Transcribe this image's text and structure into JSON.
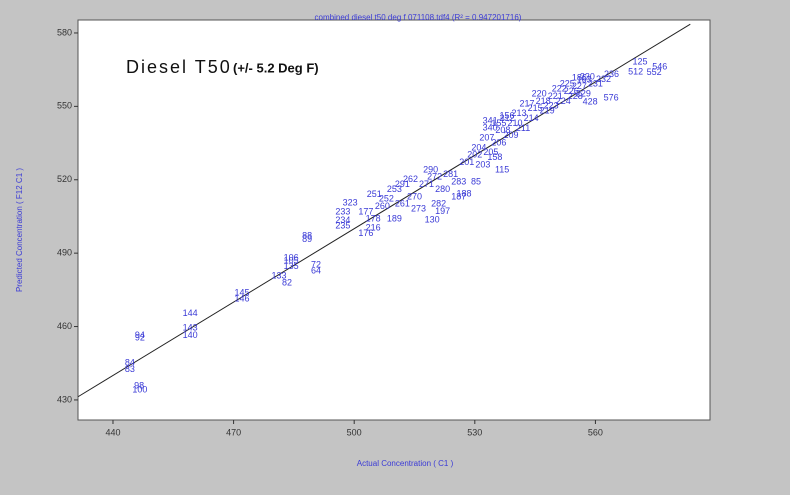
{
  "chart_data": {
    "type": "scatter",
    "title": "combined diesel t50 deg f 071108.tdf4  (R² = 0.947201716)",
    "annotation": "Diesel T50",
    "annotation_note": "(+/- 5.2 Deg F)",
    "x_label": "Actual Concentration ( C1 )",
    "y_label": "Predicted Concentration ( F12 C1 )",
    "xlim": [
      431.3,
      588.5
    ],
    "ylim": [
      421.8,
      585.3
    ],
    "xticks": [
      440,
      470,
      500,
      530,
      560
    ],
    "yticks": [
      430,
      460,
      490,
      520,
      550,
      580
    ],
    "color": "#3a3ad6",
    "fit_line": {
      "x": [
        431.3,
        583.6
      ],
      "y": [
        431.3,
        583.6
      ]
    },
    "x": [
      459.2,
      459.2,
      459.2,
      472.1,
      472.1,
      446.5,
      446.7,
      444.2,
      444.2,
      446.7,
      446.7,
      488.3,
      488.3,
      484.3,
      484.3,
      484.3,
      490.5,
      490.5,
      481.3,
      483.3,
      497.2,
      497.2,
      497.2,
      502.9,
      502.9,
      499.0,
      504.7,
      504.7,
      519.4,
      527.3,
      533.8,
      533.8,
      563.9,
      558.7,
      571.1,
      574.6,
      557.2,
      556.0,
      536.8,
      530.3,
      505,
      508,
      510,
      507,
      512,
      514,
      515,
      518,
      520,
      516,
      522,
      524,
      521,
      526,
      519,
      512,
      528,
      530,
      532,
      531,
      534,
      536,
      533,
      537,
      539,
      540,
      542,
      538,
      541,
      544,
      545,
      543,
      547,
      548,
      546,
      550,
      551,
      549,
      552,
      553,
      554,
      556,
      555,
      557,
      558,
      560,
      562,
      564,
      570,
      576,
      535,
      536,
      538,
      526,
      522,
      510
    ],
    "values": [
      465.2,
      456.2,
      459.4,
      473.7,
      471.3,
      435.7,
      434.1,
      445.1,
      442.3,
      456.2,
      455.2,
      497.0,
      495.6,
      488.0,
      486.8,
      484.4,
      485.2,
      482.7,
      480.7,
      477.8,
      506.8,
      503.2,
      501.1,
      497.9,
      506.8,
      510.5,
      504.0,
      500.3,
      503.6,
      514.2,
      544.0,
      541.2,
      553.4,
      551.8,
      568.1,
      563.7,
      560.8,
      561.6,
      524.0,
      519.1,
      514,
      512,
      516,
      509,
      510,
      520,
      513,
      518,
      521,
      508,
      516,
      522,
      510,
      519,
      524,
      518,
      527,
      530,
      526,
      533,
      531,
      535,
      537,
      540,
      538,
      543,
      541,
      545,
      547,
      545,
      549,
      551,
      552,
      548,
      555,
      554,
      557,
      550,
      552,
      559,
      556,
      558,
      554,
      555,
      562,
      559,
      561,
      563,
      564,
      566,
      529,
      543,
      546,
      513,
      507,
      504
    ],
    "point_labels": [
      "144",
      "140",
      "143",
      "145",
      "146",
      "98",
      "100",
      "84",
      "83",
      "94",
      "92",
      "88",
      "89",
      "106",
      "105",
      "135",
      "72",
      "64",
      "133",
      "82",
      "233",
      "234",
      "235",
      "176",
      "177",
      "323",
      "178",
      "216",
      "130",
      "188",
      "341",
      "340",
      "576",
      "428",
      "125",
      "552",
      "163",
      "186",
      "115",
      "85",
      "251",
      "252",
      "253",
      "260",
      "261",
      "262",
      "270",
      "271",
      "272",
      "273",
      "280",
      "281",
      "282",
      "283",
      "290",
      "291",
      "201",
      "202",
      "203",
      "204",
      "205",
      "206",
      "207",
      "208",
      "209",
      "210",
      "211",
      "212",
      "213",
      "214",
      "215",
      "217",
      "218",
      "219",
      "220",
      "221",
      "222",
      "223",
      "224",
      "225",
      "226",
      "227",
      "228",
      "229",
      "230",
      "231",
      "232",
      "236",
      "512",
      "546",
      "158",
      "155",
      "156",
      "187",
      "197",
      "189"
    ]
  }
}
